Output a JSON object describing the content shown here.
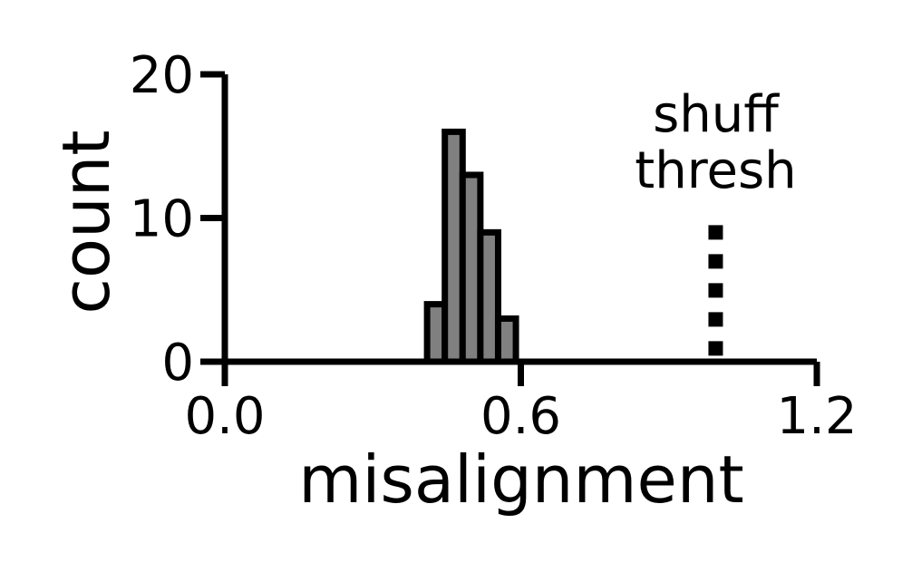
{
  "chart_data": {
    "type": "bar",
    "title": "",
    "xlabel": "misalignment",
    "ylabel": "count",
    "xlim": [
      0.0,
      1.2
    ],
    "ylim": [
      0,
      20
    ],
    "x_ticks": [
      {
        "value": 0.0,
        "label": "0.0"
      },
      {
        "value": 0.6,
        "label": "0.6"
      },
      {
        "value": 1.2,
        "label": "1.2"
      }
    ],
    "y_ticks": [
      {
        "value": 0,
        "label": "0"
      },
      {
        "value": 10,
        "label": "10"
      },
      {
        "value": 20,
        "label": "20"
      }
    ],
    "bin_width": 0.036,
    "bins": [
      {
        "start": 0.41,
        "count": 4
      },
      {
        "start": 0.446,
        "count": 16
      },
      {
        "start": 0.482,
        "count": 13
      },
      {
        "start": 0.518,
        "count": 9
      },
      {
        "start": 0.554,
        "count": 3
      }
    ],
    "bar_color": "#808080",
    "edge_color": "#000000",
    "grid": false,
    "threshold": {
      "label_lines": [
        "shuff",
        "thresh"
      ],
      "x": 0.995,
      "y_top": 9.5,
      "style": "dotted"
    }
  }
}
